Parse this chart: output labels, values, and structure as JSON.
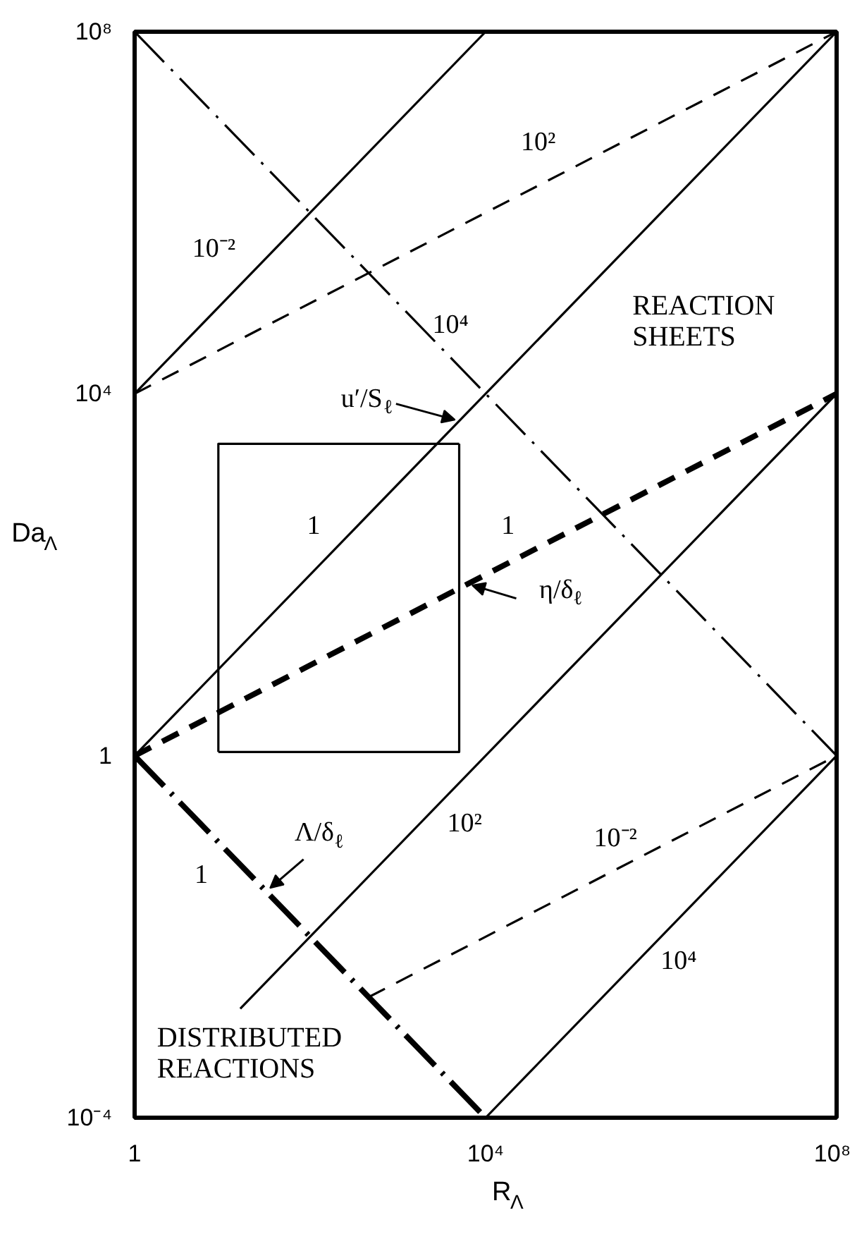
{
  "chart_data": {
    "type": "line",
    "xlabel": "R$_{Λ}$",
    "ylabel": "Da$_{Λ}$",
    "log": "xy",
    "xlim": [
      1,
      100000000
    ],
    "ylim": [
      0.0001,
      100000000
    ],
    "xticks": [
      1,
      {
        "value": 10000,
        "label": "10⁴"
      },
      {
        "value": 100000000,
        "label": "10⁸"
      }
    ],
    "yticks": [
      {
        "value": 0.0001,
        "label": "10⁻⁴"
      },
      1,
      {
        "value": 10000,
        "label": "10⁴"
      },
      {
        "value": 100000000,
        "label": "10⁸"
      }
    ],
    "series": [
      {
        "color": "#000000",
        "line_style": "solid",
        "x": [
          1,
          10000
        ],
        "values": [
          10000,
          100000000
        ]
      },
      {
        "color": "#000000",
        "line_style": "solid",
        "x": [
          1,
          100000000
        ],
        "values": [
          1,
          100000000
        ]
      },
      {
        "color": "#000000",
        "line_style": "solid",
        "x": [
          16,
          100000000
        ],
        "values": [
          0.0016,
          10000
        ]
      },
      {
        "color": "#000000",
        "line_style": "solid",
        "x": [
          10000,
          100000000
        ],
        "values": [
          0.0001,
          1
        ]
      },
      {
        "color": "#000000",
        "line_style": "dashed",
        "x": [
          1,
          100000000
        ],
        "values": [
          10000,
          100000000
        ]
      },
      {
        "color": "#000000",
        "line_style": "dashed",
        "x": [
          1,
          100000000
        ],
        "values": [
          1,
          10000
        ]
      },
      {
        "color": "#000000",
        "line_style": "dashed",
        "x": [
          464,
          100000000
        ],
        "values": [
          0.00215,
          1
        ]
      },
      {
        "color": "#000000",
        "line_style": "dashdot",
        "x": [
          1,
          100000000
        ],
        "values": [
          100000000,
          1
        ]
      },
      {
        "color": "#000000",
        "line_style": "dashdot",
        "x": [
          1,
          10000
        ],
        "values": [
          1,
          0.0001
        ]
      },
      {
        "color": "#000000",
        "line_style": "solid",
        "x": [
          9,
          9,
          5000
        ],
        "values": [
          1.1,
          2800,
          2800
        ]
      },
      {
        "color": "#000000",
        "line_style": "solid",
        "x": [
          9,
          5000,
          5000
        ],
        "values": [
          1.1,
          1.1,
          2800
        ]
      }
    ],
    "annotations": [
      "10⁻²",
      "10²",
      "10⁴",
      "REACTION SHEETS",
      {
        "text": "u′/S$_{ℓ}$",
        "x": 5000,
        "y": 5000
      },
      "1",
      "1",
      {
        "text": "η/δ$_{ℓ}$",
        "x": 6300,
        "y": 79
      },
      {
        "text": "Λ/δ$_{ℓ}$",
        "x": 32,
        "y": 0.032
      },
      "1",
      "10²",
      "10⁻²",
      "10⁴",
      "DISTRIBUTED REACTIONS"
    ]
  }
}
